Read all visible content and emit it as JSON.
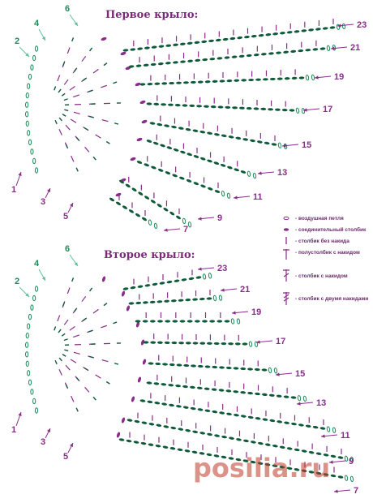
{
  "wing1": {
    "title": "Первое крыло:",
    "left_labels": [
      "1",
      "2",
      "3",
      "4",
      "5",
      "6"
    ],
    "right_labels": [
      "23",
      "21",
      "19",
      "17",
      "15",
      "13",
      "11",
      "9",
      "7"
    ]
  },
  "wing2": {
    "title": "Второе крыло:",
    "left_labels": [
      "1",
      "2",
      "3",
      "4",
      "5",
      "6"
    ],
    "right_labels": [
      "23",
      "21",
      "19",
      "17",
      "15",
      "13",
      "11",
      "9",
      "7"
    ]
  },
  "legend": [
    {
      "symbol": "chain-stitch-icon",
      "text": "- воздушная петля"
    },
    {
      "symbol": "slip-stitch-icon",
      "text": "- соединительный столбик"
    },
    {
      "symbol": "single-crochet-icon",
      "text": "- столбик без накида"
    },
    {
      "symbol": "half-double-crochet-icon",
      "text": "- полустолбик с накидом"
    },
    {
      "symbol": "double-crochet-icon",
      "text": "- столбик с накидом"
    },
    {
      "symbol": "treble-crochet-icon",
      "text": "- столбик с двумя накидами"
    }
  ],
  "watermark": "posiliа.ru",
  "colors": {
    "green": "#1f8a5a",
    "dark_green": "#0f5a3a",
    "purple": "#8a2d8a",
    "mint": "#5fc0a0"
  }
}
